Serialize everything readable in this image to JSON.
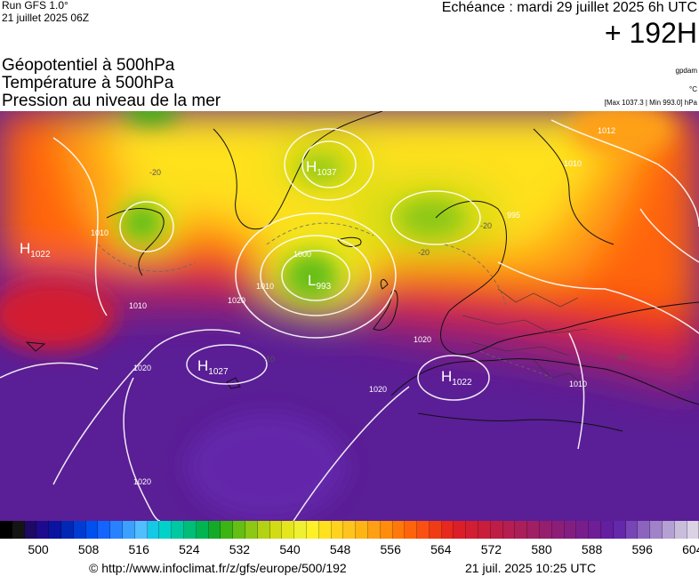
{
  "header": {
    "run": "Run GFS 1.0°",
    "run_date": "21 juillet 2025 06Z",
    "echeance": "Echéance : mardi 29 juillet 2025 6h UTC",
    "lead_time": "+ 192H",
    "lines": [
      "Géopotentiel à 500hPa",
      "Température à 500hPa",
      "Pression au niveau de la mer"
    ],
    "unit_gpdam": "gpdam",
    "unit_celsius": "°C",
    "pressure_range": "[Max 1037.3 | Min 993.0] hPa"
  },
  "map": {
    "pressure_centers": [
      {
        "type": "H",
        "value": "1037"
      },
      {
        "type": "H",
        "value": "1022"
      },
      {
        "type": "L",
        "value": "993"
      },
      {
        "type": "H",
        "value": "1027"
      },
      {
        "type": "H",
        "value": "1022"
      }
    ],
    "isobar_labels": [
      "1012",
      "1010",
      "995",
      "1000",
      "1010",
      "1010",
      "1020",
      "1020",
      "1020",
      "1020",
      "1020",
      "1010",
      "1010"
    ],
    "temperature_labels": [
      "-20",
      "-20",
      "-20",
      "-10",
      "-10"
    ]
  },
  "colorbar": {
    "tick_labels": [
      "500",
      "508",
      "516",
      "524",
      "532",
      "540",
      "548",
      "556",
      "564",
      "572",
      "580",
      "588",
      "596",
      "604"
    ],
    "colors": [
      "#000000",
      "#141414",
      "#1e0a64",
      "#1e0a8c",
      "#0a14a0",
      "#0028b4",
      "#003cd2",
      "#0050f0",
      "#1464ff",
      "#2882ff",
      "#3ca0ff",
      "#50beff",
      "#14c8e6",
      "#00d2c8",
      "#00c8a0",
      "#00be78",
      "#00b450",
      "#14aa28",
      "#3cb414",
      "#64be14",
      "#8cc814",
      "#b4d214",
      "#d2dc14",
      "#e6e61e",
      "#f0f032",
      "#fff028",
      "#ffe11e",
      "#ffd21e",
      "#ffc31e",
      "#ffb414",
      "#ffa014",
      "#ff8c0a",
      "#ff780a",
      "#ff640a",
      "#fa5014",
      "#f03c14",
      "#e6281e",
      "#dc1e28",
      "#d21e32",
      "#c81e3c",
      "#be1e46",
      "#b41e50",
      "#aa1e5a",
      "#a01e64",
      "#961e6e",
      "#8c1e78",
      "#821e82",
      "#781e8c",
      "#6e1e96",
      "#641ea0",
      "#6428aa",
      "#7846b4",
      "#8c64be",
      "#a082c8",
      "#b4a0d2",
      "#c8bedc",
      "#dcd2e6"
    ]
  },
  "footer": {
    "url": "© http://www.infoclimat.fr/z/gfs/europe/500/192",
    "date": "21 juil. 2025 10:25 UTC"
  }
}
